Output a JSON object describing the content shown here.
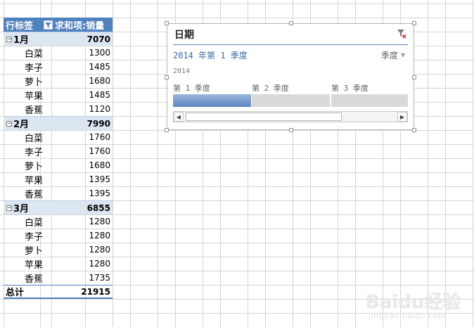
{
  "pivot": {
    "header_row_label": "行标签",
    "header_value_label": "求和项:销量",
    "months": [
      {
        "label": "1月",
        "total": "7070",
        "items": [
          {
            "name": "白菜",
            "value": "1300"
          },
          {
            "name": "李子",
            "value": "1485"
          },
          {
            "name": "萝卜",
            "value": "1680"
          },
          {
            "name": "苹果",
            "value": "1485"
          },
          {
            "name": "香蕉",
            "value": "1120"
          }
        ]
      },
      {
        "label": "2月",
        "total": "7990",
        "items": [
          {
            "name": "白菜",
            "value": "1760"
          },
          {
            "name": "李子",
            "value": "1760"
          },
          {
            "name": "萝卜",
            "value": "1680"
          },
          {
            "name": "苹果",
            "value": "1395"
          },
          {
            "name": "香蕉",
            "value": "1395"
          }
        ]
      },
      {
        "label": "3月",
        "total": "6855",
        "items": [
          {
            "name": "白菜",
            "value": "1280"
          },
          {
            "name": "李子",
            "value": "1280"
          },
          {
            "name": "萝卜",
            "value": "1280"
          },
          {
            "name": "苹果",
            "value": "1280"
          },
          {
            "name": "香蕉",
            "value": "1735"
          }
        ]
      }
    ],
    "grand_total_label": "总计",
    "grand_total_value": "21915",
    "collapse_symbol": "−",
    "header_color": "#4f81bd",
    "month_row_color": "#dce6f1"
  },
  "slicer": {
    "title": "日期",
    "selected_period": "2014 年第 1 季度",
    "time_level": "季度",
    "year": "2014",
    "quarters": [
      "第 1 季度",
      "第 2 季度",
      "第 3 季度"
    ],
    "selected_quarter_index": 0,
    "clear_filter_icon": "clear-filter-icon",
    "scroll_left_icon": "scroll-left-icon",
    "scroll_right_icon": "scroll-right-icon",
    "accent_color": "#4f81bd"
  },
  "watermark": {
    "text": "Baidu经验",
    "subtext": "jingyan.baidu.com"
  }
}
